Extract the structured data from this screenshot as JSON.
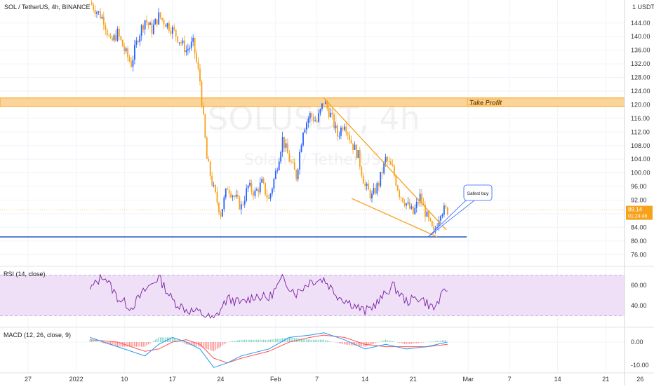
{
  "header": {
    "symbol_text": "SOL / TetherUS, 4h, BINANCE",
    "currency": "1 USDT",
    "watermark": "SOLUSDT, 4h",
    "watermark_sub": "Solana / TetherUS"
  },
  "colors": {
    "up": "#2962ff",
    "down": "#f7a21b",
    "grid": "#f0f3fa",
    "zone_fill": "#fbd49a",
    "zone_stroke": "#f7a21b",
    "support": "#2457c5",
    "rsi_line": "#7b1fa2",
    "rsi_band": "#efdff7",
    "macd_line": "#2196f3",
    "signal_line": "#ff5252",
    "callout_stroke": "#2962ff",
    "price_badge": "#f7a21b"
  },
  "annotations": {
    "take_profit": "Take Profit",
    "safest_buy": "Safest buy",
    "price_badge_top": "89.14",
    "price_badge_bottom": "01:24:48"
  },
  "rsi_pane": {
    "label": "RSI (14, close)",
    "ticks": [
      "60.00",
      "40.00"
    ]
  },
  "macd_pane": {
    "label": "MACD (12, 26, close, 9)",
    "ticks": [
      "0.00",
      "-10.00"
    ]
  },
  "chart_data": [
    {
      "type": "candlestick",
      "title": "SOL / TetherUS, 4h, BINANCE",
      "y_tick_labels": [
        "144.00",
        "140.00",
        "136.00",
        "132.00",
        "128.00",
        "124.00",
        "120.00",
        "116.00",
        "112.00",
        "108.00",
        "104.00",
        "100.00",
        "96.00",
        "92.00",
        "88.00",
        "84.00",
        "80.00",
        "76.00"
      ],
      "ylim": [
        72,
        148
      ],
      "x_tick_labels": [
        "27",
        "2022",
        "10",
        "17",
        "24",
        "Feb",
        "7",
        "14",
        "21",
        "Mar",
        "7",
        "14",
        "21",
        "26"
      ],
      "grid": true,
      "close_path": [
        {
          "t": "Jan 5",
          "v": 150
        },
        {
          "t": "Jan 7",
          "v": 145
        },
        {
          "t": "Jan 8",
          "v": 138
        },
        {
          "t": "Jan 9",
          "v": 141
        },
        {
          "t": "Jan 10",
          "v": 136
        },
        {
          "t": "Jan 11",
          "v": 132
        },
        {
          "t": "Jan 12",
          "v": 140
        },
        {
          "t": "Jan 13",
          "v": 145
        },
        {
          "t": "Jan 14",
          "v": 142
        },
        {
          "t": "Jan 15",
          "v": 146
        },
        {
          "t": "Jan 16",
          "v": 144
        },
        {
          "t": "Jan 17",
          "v": 142
        },
        {
          "t": "Jan 18",
          "v": 139
        },
        {
          "t": "Jan 19",
          "v": 136
        },
        {
          "t": "Jan 20",
          "v": 138
        },
        {
          "t": "Jan 21",
          "v": 127
        },
        {
          "t": "Jan 22",
          "v": 104
        },
        {
          "t": "Jan 23",
          "v": 95
        },
        {
          "t": "Jan 24",
          "v": 88
        },
        {
          "t": "Jan 25",
          "v": 96
        },
        {
          "t": "Jan 26",
          "v": 93
        },
        {
          "t": "Jan 27",
          "v": 90
        },
        {
          "t": "Jan 28",
          "v": 96
        },
        {
          "t": "Jan 29",
          "v": 94
        },
        {
          "t": "Jan 30",
          "v": 97
        },
        {
          "t": "Jan 31",
          "v": 92
        },
        {
          "t": "Feb 1",
          "v": 100
        },
        {
          "t": "Feb 2",
          "v": 110
        },
        {
          "t": "Feb 3",
          "v": 104
        },
        {
          "t": "Feb 4",
          "v": 99
        },
        {
          "t": "Feb 5",
          "v": 113
        },
        {
          "t": "Feb 6",
          "v": 117
        },
        {
          "t": "Feb 7",
          "v": 115
        },
        {
          "t": "Feb 8",
          "v": 121
        },
        {
          "t": "Feb 9",
          "v": 117
        },
        {
          "t": "Feb 10",
          "v": 111
        },
        {
          "t": "Feb 11",
          "v": 115
        },
        {
          "t": "Feb 12",
          "v": 109
        },
        {
          "t": "Feb 13",
          "v": 105
        },
        {
          "t": "Feb 14",
          "v": 96
        },
        {
          "t": "Feb 15",
          "v": 93
        },
        {
          "t": "Feb 16",
          "v": 97
        },
        {
          "t": "Feb 17",
          "v": 104
        },
        {
          "t": "Feb 18",
          "v": 101
        },
        {
          "t": "Feb 19",
          "v": 94
        },
        {
          "t": "Feb 20",
          "v": 91
        },
        {
          "t": "Feb 21",
          "v": 88
        },
        {
          "t": "Feb 22",
          "v": 93
        },
        {
          "t": "Feb 23",
          "v": 87
        },
        {
          "t": "Feb 24",
          "v": 82
        },
        {
          "t": "Feb 25",
          "v": 89
        },
        {
          "t": "Feb 26",
          "v": 89
        }
      ],
      "take_profit_zone": [
        119.5,
        122
      ],
      "support_level": 81.2,
      "current_price_line": 89.1
    },
    {
      "type": "line",
      "title": "RSI (14, close)",
      "band": [
        30,
        70
      ],
      "ylim": [
        20,
        80
      ],
      "y_tick_labels": [
        "60.00",
        "40.00"
      ],
      "close_path": [
        {
          "t": "Jan 5",
          "v": 56
        },
        {
          "t": "Jan 7",
          "v": 70
        },
        {
          "t": "Jan 9",
          "v": 48
        },
        {
          "t": "Jan 11",
          "v": 38
        },
        {
          "t": "Jan 13",
          "v": 55
        },
        {
          "t": "Jan 15",
          "v": 68
        },
        {
          "t": "Jan 17",
          "v": 45
        },
        {
          "t": "Jan 19",
          "v": 36
        },
        {
          "t": "Jan 21",
          "v": 33
        },
        {
          "t": "Jan 23",
          "v": 26
        },
        {
          "t": "Jan 25",
          "v": 47
        },
        {
          "t": "Jan 27",
          "v": 42
        },
        {
          "t": "Jan 29",
          "v": 50
        },
        {
          "t": "Jan 31",
          "v": 47
        },
        {
          "t": "Feb 2",
          "v": 66
        },
        {
          "t": "Feb 4",
          "v": 52
        },
        {
          "t": "Feb 6",
          "v": 64
        },
        {
          "t": "Feb 8",
          "v": 66
        },
        {
          "t": "Feb 10",
          "v": 50
        },
        {
          "t": "Feb 12",
          "v": 42
        },
        {
          "t": "Feb 14",
          "v": 34
        },
        {
          "t": "Feb 16",
          "v": 44
        },
        {
          "t": "Feb 18",
          "v": 60
        },
        {
          "t": "Feb 20",
          "v": 44
        },
        {
          "t": "Feb 22",
          "v": 48
        },
        {
          "t": "Feb 24",
          "v": 37
        },
        {
          "t": "Feb 26",
          "v": 58
        }
      ]
    },
    {
      "type": "line",
      "title": "MACD (12, 26, close, 9)",
      "ylim": [
        -14,
        6
      ],
      "y_tick_labels": [
        "0.00",
        "-10.00"
      ],
      "series": [
        {
          "name": "MACD",
          "close_path": [
            {
              "t": "Jan 5",
              "v": 2
            },
            {
              "t": "Jan 9",
              "v": -2
            },
            {
              "t": "Jan 13",
              "v": -6
            },
            {
              "t": "Jan 15",
              "v": -1
            },
            {
              "t": "Jan 17",
              "v": 2
            },
            {
              "t": "Jan 19",
              "v": 0
            },
            {
              "t": "Jan 21",
              "v": -3
            },
            {
              "t": "Jan 23",
              "v": -11
            },
            {
              "t": "Jan 25",
              "v": -9
            },
            {
              "t": "Jan 27",
              "v": -6
            },
            {
              "t": "Jan 31",
              "v": -3
            },
            {
              "t": "Feb 3",
              "v": 2
            },
            {
              "t": "Feb 6",
              "v": 3
            },
            {
              "t": "Feb 8",
              "v": 4
            },
            {
              "t": "Feb 11",
              "v": 1
            },
            {
              "t": "Feb 14",
              "v": -3
            },
            {
              "t": "Feb 17",
              "v": -1
            },
            {
              "t": "Feb 20",
              "v": -3
            },
            {
              "t": "Feb 23",
              "v": -2
            },
            {
              "t": "Feb 26",
              "v": 0
            }
          ]
        },
        {
          "name": "Signal",
          "close_path": [
            {
              "t": "Jan 5",
              "v": 1
            },
            {
              "t": "Jan 9",
              "v": 0
            },
            {
              "t": "Jan 13",
              "v": -4
            },
            {
              "t": "Jan 15",
              "v": -3
            },
            {
              "t": "Jan 17",
              "v": 0
            },
            {
              "t": "Jan 19",
              "v": 1
            },
            {
              "t": "Jan 21",
              "v": -1
            },
            {
              "t": "Jan 23",
              "v": -7
            },
            {
              "t": "Jan 25",
              "v": -9
            },
            {
              "t": "Jan 27",
              "v": -7
            },
            {
              "t": "Jan 31",
              "v": -4
            },
            {
              "t": "Feb 3",
              "v": 0
            },
            {
              "t": "Feb 6",
              "v": 2
            },
            {
              "t": "Feb 8",
              "v": 3
            },
            {
              "t": "Feb 11",
              "v": 2
            },
            {
              "t": "Feb 14",
              "v": -1
            },
            {
              "t": "Feb 17",
              "v": -2
            },
            {
              "t": "Feb 20",
              "v": -2
            },
            {
              "t": "Feb 23",
              "v": -2
            },
            {
              "t": "Feb 26",
              "v": -1
            }
          ]
        }
      ]
    }
  ]
}
